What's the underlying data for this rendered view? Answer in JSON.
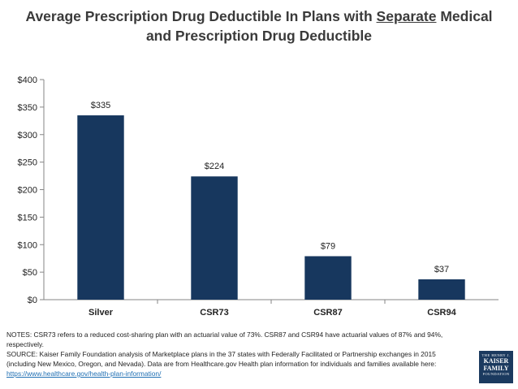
{
  "title": {
    "line1_pre": "Average Prescription Drug Deductible In Plans with ",
    "line1_underlined": "Separate",
    "line1_post": " Medical",
    "line2": "and Prescription Drug Deductible"
  },
  "chart_data": {
    "type": "bar",
    "categories": [
      "Silver",
      "CSR73",
      "CSR87",
      "CSR94"
    ],
    "values": [
      335,
      224,
      79,
      37
    ],
    "data_labels": [
      "$335",
      "$224",
      "$79",
      "$37"
    ],
    "y_ticks": [
      0,
      50,
      100,
      150,
      200,
      250,
      300,
      350,
      400
    ],
    "y_tick_labels": [
      "$0",
      "$50",
      "$100",
      "$150",
      "$200",
      "$250",
      "$300",
      "$350",
      "$400"
    ],
    "ylim": [
      0,
      400
    ],
    "xlabel": "",
    "ylabel": "",
    "bar_color": "#17375e",
    "grid": false,
    "legend": "none"
  },
  "notes": {
    "line1": "NOTES: CSR73 refers to a reduced cost-sharing plan with an actuarial value of 73%. CSR87 and CSR94 have actuarial values of 87% and 94%, respectively.",
    "line2": "SOURCE: Kaiser Family Foundation analysis of Marketplace plans in the 37 states with Federally Facilitated or Partnership exchanges in 2015 (including New Mexico, Oregon, and Nevada). Data are from Healthcare.gov Health plan information for individuals and families available here: ",
    "link": "https://www.healthcare.gov/health-plan-information/"
  },
  "logo": {
    "top": "THE HENRY J.",
    "kaiser": "KAISER",
    "family": "FAMILY",
    "foundation": "FOUNDATION"
  }
}
